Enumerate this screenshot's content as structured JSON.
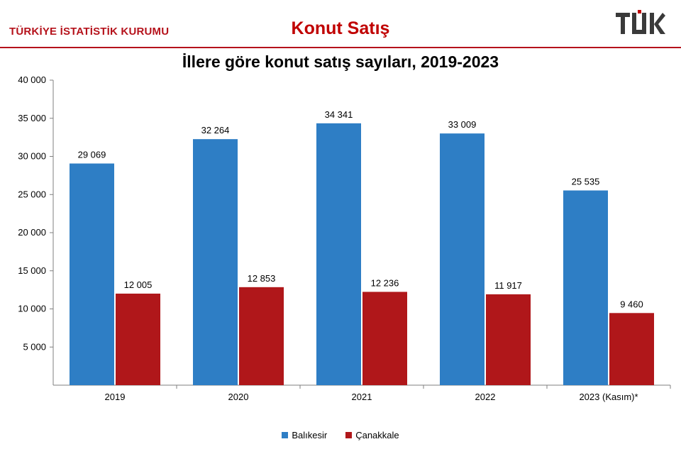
{
  "header": {
    "org_name": "TÜRKİYE İSTATİSTİK KURUMU",
    "page_title": "Konut Satış",
    "logo_text": "TÜİK",
    "accent_color": "#b5121b"
  },
  "chart_data": {
    "type": "bar",
    "title": "İllere göre konut satış sayıları, 2019-2023",
    "categories": [
      "2019",
      "2020",
      "2021",
      "2022",
      "2023 (Kasım)*"
    ],
    "series": [
      {
        "name": "Balıkesir",
        "color": "#2e7ec5",
        "values": [
          29069,
          32264,
          34341,
          33009,
          25535
        ],
        "labels": [
          "29 069",
          "32 264",
          "34 341",
          "33 009",
          "25 535"
        ]
      },
      {
        "name": "Çanakkale",
        "color": "#b0171a",
        "values": [
          12005,
          12853,
          12236,
          11917,
          9460
        ],
        "labels": [
          "12 005",
          "12 853",
          "12 236",
          "11 917",
          "9 460"
        ]
      }
    ],
    "ylim": [
      0,
      40000
    ],
    "yticks": [
      5000,
      10000,
      15000,
      20000,
      25000,
      30000,
      35000,
      40000
    ],
    "ytick_labels": [
      "5 000",
      "10 000",
      "15 000",
      "20 000",
      "25 000",
      "30 000",
      "35 000",
      "40 000"
    ],
    "grid": false,
    "legend_position": "bottom"
  }
}
